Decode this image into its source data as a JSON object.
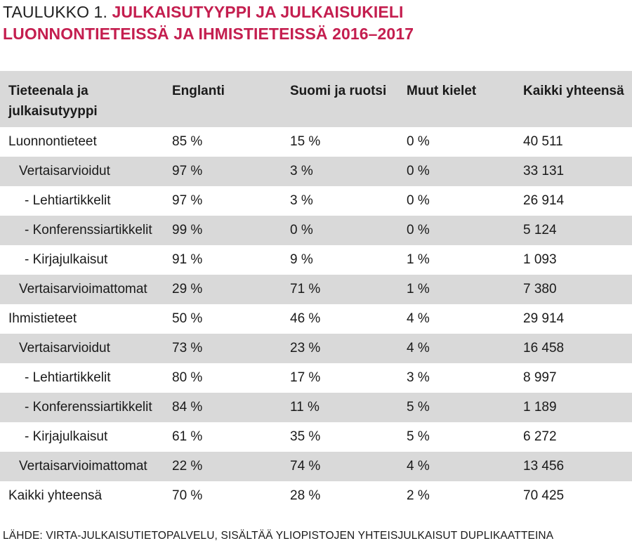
{
  "title": {
    "prefix": "TAULUKKO 1. ",
    "line1_red": "JULKAISUTYYPPI JA JULKAISUKIELI",
    "line2_red": "LUONNONTIETEISSÄ JA IHMISTIETEISSÄ 2016–2017"
  },
  "table": {
    "headers": {
      "col1_line1": "Tieteenala ja",
      "col1_line2": "julkaisutyyppi",
      "col2": "Englanti",
      "col3": "Suomi ja ruotsi",
      "col4": "Muut kielet",
      "col5": "Kaikki yhteensä"
    },
    "rows": [
      {
        "label": "Luonnontieteet",
        "en": "85 %",
        "fi": "15 %",
        "other": "0 %",
        "total": "40 511"
      },
      {
        "label": "Vertaisarvioidut",
        "en": "97 %",
        "fi": "3 %",
        "other": "0 %",
        "total": "33 131"
      },
      {
        "label": "- Lehtiartikkelit",
        "en": "97 %",
        "fi": "3 %",
        "other": "0 %",
        "total": "26 914"
      },
      {
        "label": "- Konferenssiartikkelit",
        "en": "99 %",
        "fi": "0 %",
        "other": "0 %",
        "total": "5 124"
      },
      {
        "label": "- Kirjajulkaisut",
        "en": "91 %",
        "fi": "9 %",
        "other": "1 %",
        "total": "1 093"
      },
      {
        "label": "Vertaisarvioimattomat",
        "en": "29 %",
        "fi": "71 %",
        "other": "1 %",
        "total": "7 380"
      },
      {
        "label": "Ihmistieteet",
        "en": "50 %",
        "fi": "46 %",
        "other": "4 %",
        "total": "29 914"
      },
      {
        "label": "Vertaisarvioidut",
        "en": "73 %",
        "fi": "23 %",
        "other": "4 %",
        "total": "16 458"
      },
      {
        "label": "- Lehtiartikkelit",
        "en": "80 %",
        "fi": "17 %",
        "other": "3 %",
        "total": "8 997"
      },
      {
        "label": "- Konferenssiartikkelit",
        "en": "84 %",
        "fi": "11 %",
        "other": "5 %",
        "total": "1 189"
      },
      {
        "label": "- Kirjajulkaisut",
        "en": "61 %",
        "fi": "35 %",
        "other": "5 %",
        "total": "6 272"
      },
      {
        "label": "Vertaisarvioimattomat",
        "en": "22 %",
        "fi": "74 %",
        "other": "4 %",
        "total": "13 456"
      },
      {
        "label": "Kaikki yhteensä",
        "en": "70 %",
        "fi": "28 %",
        "other": "2 %",
        "total": "70 425"
      }
    ]
  },
  "source": "LÄHDE: VIRTA-JULKAISUTIETOPALVELU, SISÄLTÄÄ YLIOPISTOJEN YHTEISJULKAISUT DUPLIKAATTEINA",
  "colors": {
    "title_accent": "#c41e4f",
    "header_background": "#d9d9d9",
    "stripe_background": "#d9d9d9",
    "text": "#1a1a1a"
  }
}
